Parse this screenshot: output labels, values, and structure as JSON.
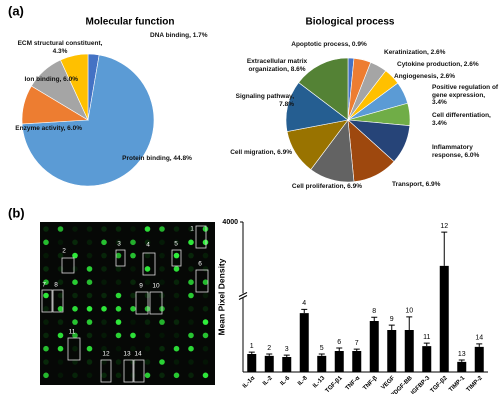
{
  "panels": [
    "(a)",
    "(b)"
  ],
  "array_image": {
    "labels": [
      "1",
      "2",
      "3",
      "4",
      "5",
      "6",
      "7",
      "8",
      "9",
      "10",
      "11",
      "12",
      "13",
      "14"
    ]
  },
  "chart_data": [
    {
      "type": "pie",
      "title": "Molecular function",
      "categories": [
        "DNA binding, 1.7%",
        "Protein binding, 44.8%",
        "Enzyme activity, 6.0%",
        "Ion binding, 6.0%",
        "ECM structural constituent, 4.3%"
      ],
      "values": [
        1.7,
        44.8,
        6.0,
        6.0,
        4.3
      ],
      "colors": [
        "#4472c4",
        "#5b9bd5",
        "#ed7d31",
        "#a5a5a5",
        "#ffc000"
      ]
    },
    {
      "type": "pie",
      "title": "Biological process",
      "categories": [
        "Apoptotic process, 0.9%",
        "Keratinization, 2.6%",
        "Cytokine production, 2.6%",
        "Angiogenesis, 2.6%",
        "Positive regulation of gene expression, 3.4%",
        "Cell differentiation, 3.4%",
        "Inflammatory response, 6.0%",
        "Transport, 6.9%",
        "Cell proliferation, 6.9%",
        "Cell migration, 6.9%",
        "Signaling pathway, 7.8%",
        "Extracellular matrix organization, 8.6%"
      ],
      "values": [
        0.9,
        2.6,
        2.6,
        2.6,
        3.4,
        3.4,
        6.0,
        6.9,
        6.9,
        6.9,
        7.8,
        8.6
      ],
      "colors": [
        "#4472c4",
        "#ed7d31",
        "#a5a5a5",
        "#ffc000",
        "#5b9bd5",
        "#70ad47",
        "#264478",
        "#9e480e",
        "#636363",
        "#997300",
        "#255e91",
        "#548235"
      ]
    },
    {
      "type": "bar",
      "ylabel": "Mean Pixel Density",
      "categories": [
        "IL-1α",
        "IL-2",
        "IL-6",
        "IL-8",
        "IL-13",
        "TGF-β1",
        "TNF-α",
        "TNF-β",
        "VEGF",
        "PDGF-BB",
        "IGFBP-3",
        "TGF-β2",
        "TIMP-1",
        "TIMP-2"
      ],
      "values": [
        480,
        430,
        400,
        1570,
        430,
        560,
        560,
        1360,
        1120,
        1120,
        690,
        2830,
        270,
        670
      ],
      "errors": [
        50,
        50,
        50,
        100,
        50,
        80,
        50,
        100,
        130,
        350,
        80,
        900,
        50,
        80
      ],
      "bar_labels": [
        "1",
        "2",
        "3",
        "4",
        "5",
        "6",
        "7",
        "8",
        "9",
        "10",
        "11",
        "12",
        "13",
        "14"
      ],
      "ylim": [
        0,
        4000
      ],
      "yticks": [
        4000
      ],
      "axis_break": true,
      "color": "#000000"
    }
  ]
}
